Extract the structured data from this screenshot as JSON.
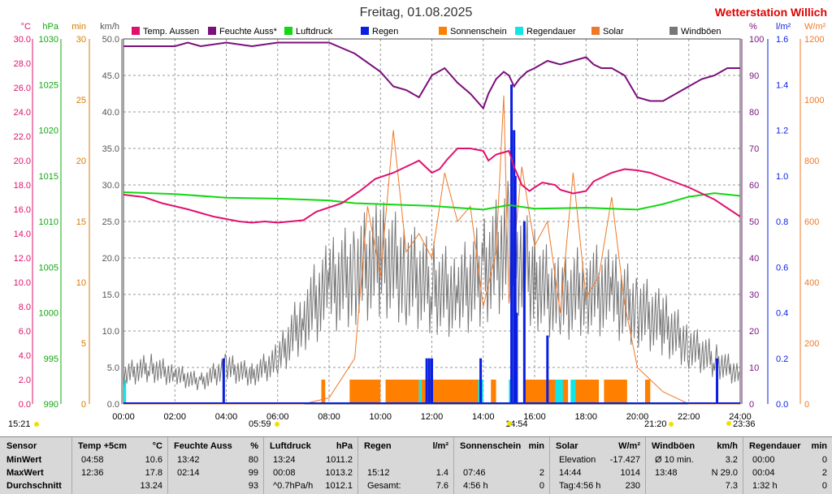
{
  "header": {
    "title": "Freitag, 01.08.2025",
    "station": "Wetterstation Willich"
  },
  "legend": [
    {
      "label": "Temp. Aussen",
      "color": "#e0116e"
    },
    {
      "label": "Feuchte Auss*",
      "color": "#7b0f7b"
    },
    {
      "label": "Luftdruck",
      "color": "#11d811"
    },
    {
      "label": "Regen",
      "color": "#0a1fe0"
    },
    {
      "label": "Sonnenschein",
      "color": "#ff7f00"
    },
    {
      "label": "Regendauer",
      "color": "#11e6e6"
    },
    {
      "label": "Solar",
      "color": "#f07828"
    },
    {
      "label": "Windböen",
      "color": "#777777"
    }
  ],
  "axes": {
    "temp": {
      "unit": "°C",
      "ticks": [
        "30.0",
        "28.0",
        "26.0",
        "24.0",
        "22.0",
        "20.0",
        "18.0",
        "16.0",
        "14.0",
        "12.0",
        "10.0",
        "8.0",
        "6.0",
        "4.0",
        "2.0",
        "0.0"
      ],
      "color": "#e0116e"
    },
    "pressure": {
      "unit": "hPa",
      "ticks": [
        "1030",
        "1025",
        "1020",
        "1015",
        "1010",
        "1005",
        "1000",
        "995",
        "990"
      ],
      "color": "#11a811"
    },
    "sunshine": {
      "unit": "min",
      "ticks": [
        "30",
        "25",
        "20",
        "15",
        "10",
        "5",
        "0"
      ],
      "color": "#d97a00"
    },
    "wind": {
      "unit": "km/h",
      "ticks": [
        "50.0",
        "45.0",
        "40.0",
        "35.0",
        "30.0",
        "25.0",
        "20.0",
        "15.0",
        "10.0",
        "5.0",
        "0.0"
      ],
      "color": "#555555"
    },
    "humidity": {
      "unit": "%",
      "ticks": [
        "100",
        "90",
        "80",
        "70",
        "60",
        "50",
        "40",
        "30",
        "20",
        "10",
        "0"
      ],
      "color": "#7b0f7b"
    },
    "rain": {
      "unit": "l/m²",
      "ticks": [
        "1.6",
        "1.4",
        "1.2",
        "1.0",
        "0.8",
        "0.6",
        "0.4",
        "0.2",
        "0.0"
      ],
      "color": "#0a1fe0"
    },
    "solar": {
      "unit": "W/m²",
      "ticks": [
        "1200",
        "1000",
        "800",
        "600",
        "400",
        "200",
        "0"
      ],
      "color": "#f07828"
    },
    "time": {
      "ticks": [
        "00:00",
        "02:00",
        "04:00",
        "06:00",
        "08:00",
        "10:00",
        "12:00",
        "14:00",
        "16:00",
        "18:00",
        "20:00",
        "22:00",
        "24:00"
      ]
    }
  },
  "markers": {
    "left": "15:21",
    "sunrise": "05:59",
    "noon": "14:54",
    "sunset": "21:20",
    "moon": "23:36"
  },
  "chart_data": {
    "type": "line",
    "x_range": [
      "00:00",
      "24:00"
    ],
    "series": [
      {
        "name": "Temp. Aussen",
        "unit": "°C",
        "x": [
          0,
          0.8,
          1.5,
          2.5,
          3.5,
          4.5,
          5,
          5.5,
          6,
          7,
          7.5,
          8.5,
          9.2,
          9.8,
          10.5,
          11,
          11.5,
          12,
          12.3,
          12.6,
          13,
          13.5,
          14,
          14.2,
          14.5,
          15,
          15.2,
          15.5,
          15.8,
          16,
          16.3,
          16.8,
          17,
          17.5,
          18,
          18.3,
          18.7,
          19,
          19.5,
          20,
          20.5,
          21,
          22,
          23,
          24
        ],
        "y": [
          17.2,
          17.0,
          16.5,
          16.0,
          15.4,
          15.0,
          14.9,
          15.0,
          14.9,
          15.1,
          15.8,
          16.5,
          17.5,
          18.5,
          19.0,
          19.5,
          20.0,
          19.0,
          19.3,
          20.1,
          21.0,
          21.0,
          20.8,
          20.0,
          20.5,
          20.8,
          19.5,
          18.0,
          17.5,
          17.8,
          18.2,
          18.0,
          17.6,
          17.3,
          17.5,
          18.3,
          18.7,
          19.0,
          19.3,
          19.2,
          19.0,
          18.6,
          17.8,
          16.8,
          15.4
        ]
      },
      {
        "name": "Feuchte Auss*",
        "unit": "%",
        "x": [
          0,
          1,
          2,
          2.5,
          3,
          4,
          5,
          6,
          7,
          8,
          9,
          10,
          10.5,
          11,
          11.5,
          12,
          12.5,
          13,
          13.5,
          14,
          14.2,
          14.5,
          14.8,
          15,
          15.2,
          15.4,
          15.7,
          16,
          16.5,
          17,
          17.5,
          18,
          18.3,
          18.6,
          19,
          19.5,
          20,
          20.5,
          21,
          21.5,
          22,
          22.5,
          23,
          23.5,
          24
        ],
        "y": [
          98,
          98,
          98,
          99,
          98,
          99,
          98,
          99,
          99,
          99,
          96,
          91,
          87,
          86,
          84,
          90,
          92,
          88,
          85,
          81,
          85,
          89,
          91,
          90,
          87,
          89,
          91,
          92,
          94,
          93,
          94,
          95,
          93,
          92,
          92,
          90,
          84,
          83,
          83,
          85,
          87,
          89,
          90,
          92,
          92
        ]
      },
      {
        "name": "Luftdruck",
        "unit": "hPa",
        "x": [
          0,
          2,
          4,
          6,
          8,
          9,
          10,
          12,
          14,
          15,
          16,
          18,
          20,
          21,
          22,
          23,
          24
        ],
        "y": [
          1013.2,
          1013.0,
          1012.6,
          1012.5,
          1012.3,
          1012.0,
          1011.9,
          1011.7,
          1011.3,
          1011.8,
          1011.4,
          1011.5,
          1011.3,
          1011.9,
          1012.7,
          1013.1,
          1012.8
        ]
      },
      {
        "name": "Regen",
        "unit": "l/m²",
        "x": [
          3.9,
          11.8,
          11.9,
          12.0,
          13.9,
          15.1,
          15.2,
          15.25,
          15.3,
          15.6,
          16.5,
          23.1
        ],
        "y": [
          0.2,
          0.2,
          0.2,
          0.2,
          0.2,
          1.4,
          1.2,
          1.0,
          0.4,
          0.8,
          0.3,
          0.2
        ]
      },
      {
        "name": "Solar",
        "unit": "W/m²",
        "x": [
          0,
          7,
          8,
          9,
          9.5,
          10,
          10.5,
          11,
          11.5,
          12,
          12.5,
          13,
          13.5,
          14,
          14.5,
          14.8,
          15,
          15.5,
          16,
          16.5,
          17,
          17.5,
          18,
          18.5,
          19,
          19.5,
          20,
          20.5,
          21,
          22,
          24
        ],
        "y": [
          0,
          0,
          20,
          150,
          650,
          420,
          900,
          500,
          560,
          480,
          760,
          600,
          650,
          320,
          500,
          1014,
          330,
          780,
          520,
          600,
          300,
          760,
          350,
          420,
          680,
          330,
          120,
          80,
          40,
          0,
          0
        ]
      },
      {
        "name": "Windböen",
        "unit": "km/h",
        "x": [
          0,
          1,
          2,
          3,
          4,
          5,
          6,
          7,
          8,
          9,
          10,
          11,
          12,
          13,
          14,
          15,
          16,
          17,
          18,
          19,
          20,
          21,
          22,
          23,
          24
        ],
        "y": [
          4,
          5,
          4,
          3,
          5,
          4,
          6,
          12,
          16,
          18,
          20,
          18,
          16,
          15,
          18,
          22,
          17,
          14,
          16,
          15,
          13,
          11,
          8,
          6,
          4
        ]
      }
    ],
    "sunshine_blocks": [
      [
        7.7,
        7.85
      ],
      [
        8.8,
        10
      ],
      [
        10.2,
        11.5
      ],
      [
        11.6,
        14
      ],
      [
        14.3,
        14.5
      ],
      [
        15.6,
        17.3
      ],
      [
        17.5,
        18.5
      ],
      [
        18.7,
        19.6
      ],
      [
        20.3,
        20.5
      ]
    ],
    "rain_duration_blocks": [
      [
        0,
        0.1
      ],
      [
        11.5,
        11.6
      ],
      [
        13.8,
        14.0
      ],
      [
        15.0,
        15.1
      ],
      [
        16.8,
        17.1
      ],
      [
        17.4,
        17.6
      ]
    ]
  },
  "table": {
    "sensor": {
      "title": "Sensor",
      "rows": [
        "MinWert",
        "MaxWert",
        "Durchschnitt"
      ]
    },
    "temp": {
      "title": "Temp +5cm",
      "unit": "°C",
      "rows": [
        [
          "04:58",
          "10.6"
        ],
        [
          "12:36",
          "17.8"
        ],
        [
          "",
          "13.24"
        ]
      ]
    },
    "humidity": {
      "title": "Feuchte Auss",
      "unit": "%",
      "rows": [
        [
          "13:42",
          "80"
        ],
        [
          "02:14",
          "99"
        ],
        [
          "",
          "93"
        ]
      ]
    },
    "pressure": {
      "title": "Luftdruck",
      "unit": "hPa",
      "rows": [
        [
          "13:24",
          "1011.2"
        ],
        [
          "00:08",
          "1013.2"
        ],
        [
          "^0.7hPa/h",
          "1012.1"
        ]
      ]
    },
    "rain": {
      "title": "Regen",
      "unit": "l/m²",
      "rows": [
        [
          "",
          ""
        ],
        [
          "15:12",
          "1.4"
        ],
        [
          "Gesamt:",
          "7.6"
        ]
      ]
    },
    "sunshine": {
      "title": "Sonnenschein",
      "unit": "min",
      "rows": [
        [
          "",
          ""
        ],
        [
          "07:46",
          "2"
        ],
        [
          "4:56 h",
          "0"
        ]
      ]
    },
    "solar": {
      "title": "Solar",
      "unit": "W/m²",
      "rows": [
        [
          "Elevation",
          "-17.427"
        ],
        [
          "14:44",
          "1014"
        ],
        [
          "Tag:4:56 h",
          "230"
        ]
      ]
    },
    "wind": {
      "title": "Windböen",
      "unit": "km/h",
      "rows": [
        [
          "Ø 10 min.",
          "3.2"
        ],
        [
          "13:48",
          "N 29.0"
        ],
        [
          "",
          "7.3"
        ]
      ]
    },
    "raindur": {
      "title": "Regendauer",
      "unit": "min",
      "rows": [
        [
          "00:00",
          "0"
        ],
        [
          "00:04",
          "2"
        ],
        [
          "1:32 h",
          "0"
        ]
      ]
    }
  }
}
